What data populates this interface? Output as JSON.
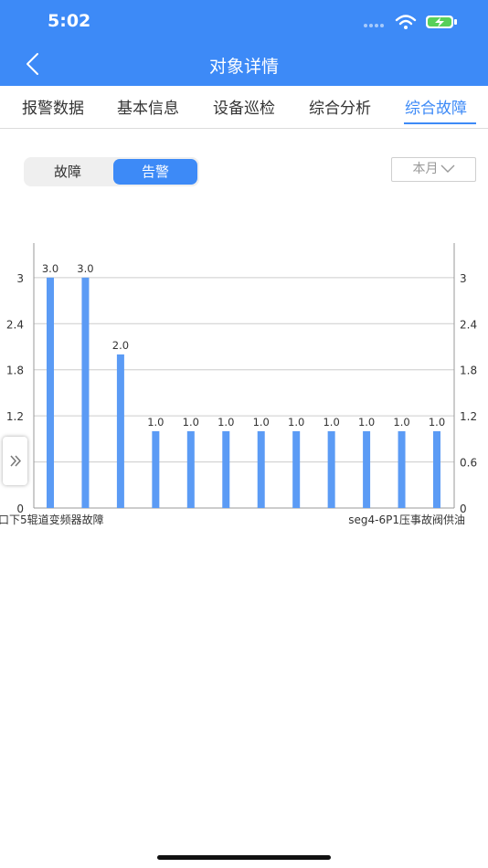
{
  "status_bar": {
    "time": "5:02"
  },
  "header": {
    "title": "对象详情",
    "back_icon": "chevron-left-icon"
  },
  "tabs": [
    {
      "label": "报警数据",
      "active": false
    },
    {
      "label": "基本信息",
      "active": false
    },
    {
      "label": "设备巡检",
      "active": false
    },
    {
      "label": "综合分析",
      "active": false
    },
    {
      "label": "综合故障",
      "active": true
    }
  ],
  "segment": {
    "options": [
      "故障",
      "告警"
    ],
    "selected": "告警"
  },
  "period_dropdown": {
    "value": "本月"
  },
  "colors": {
    "accent": "#3d8af7",
    "bar": "#5b9bf5",
    "grid": "#cccccc"
  },
  "chart_data": {
    "type": "bar",
    "values": [
      3.0,
      3.0,
      2.0,
      1.0,
      1.0,
      1.0,
      1.0,
      1.0,
      1.0,
      1.0,
      1.0,
      1.0
    ],
    "data_labels": [
      "3.0",
      "3.0",
      "2.0",
      "1.0",
      "1.0",
      "1.0",
      "1.0",
      "1.0",
      "1.0",
      "1.0",
      "1.0",
      "1.0"
    ],
    "first_category_label": "口下5辊道变频器故障",
    "last_category_label": "seg4-6P1压事故阀供油",
    "left_axis": {
      "min": 0,
      "max": 3,
      "ticks": [
        "0",
        "1.2",
        "1.8",
        "2.4",
        "3"
      ]
    },
    "right_axis": {
      "ticks": [
        "0",
        "0.6",
        "1.2",
        "1.8",
        "2.4",
        "3"
      ]
    },
    "grid": true
  },
  "side_handle": {
    "icon": "double-chevron-right-icon",
    "label": "»"
  }
}
